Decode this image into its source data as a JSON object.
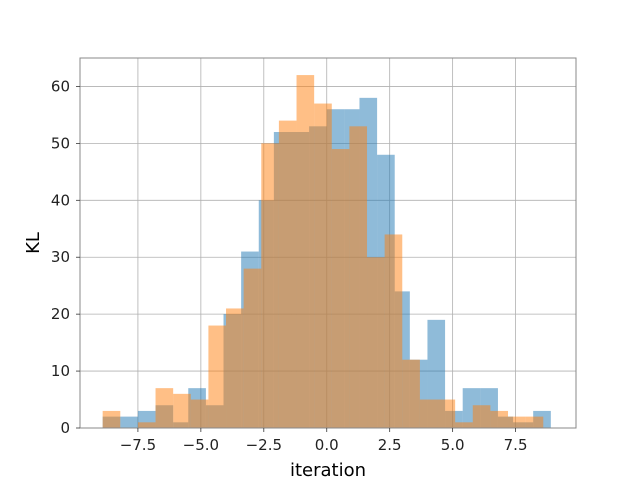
{
  "chart_data": {
    "type": "bar",
    "title": "",
    "xlabel": "iteration",
    "ylabel": "KL",
    "xlim": [
      -9.8,
      9.9
    ],
    "ylim": [
      0,
      65
    ],
    "grid": true,
    "legend": "none",
    "x_ticks": [
      -7.5,
      -5.0,
      -2.5,
      0.0,
      2.5,
      5.0,
      7.5
    ],
    "x_tick_labels": [
      "−7.5",
      "−5.0",
      "−2.5",
      "0.0",
      "2.5",
      "5.0",
      "7.5"
    ],
    "y_ticks": [
      0,
      10,
      20,
      30,
      40,
      50,
      60
    ],
    "y_tick_labels": [
      "0",
      "10",
      "20",
      "30",
      "40",
      "50",
      "60"
    ],
    "series": [
      {
        "color": "#1f77b4",
        "alpha": 0.5,
        "bins": [
          {
            "x0": -8.9,
            "x1": -8.2,
            "value": 2
          },
          {
            "x0": -8.2,
            "x1": -7.5,
            "value": 2
          },
          {
            "x0": -7.5,
            "x1": -6.8,
            "value": 3
          },
          {
            "x0": -6.8,
            "x1": -6.1,
            "value": 4
          },
          {
            "x0": -6.1,
            "x1": -5.5,
            "value": 1
          },
          {
            "x0": -5.5,
            "x1": -4.8,
            "value": 7
          },
          {
            "x0": -4.8,
            "x1": -4.1,
            "value": 4
          },
          {
            "x0": -4.1,
            "x1": -3.4,
            "value": 20
          },
          {
            "x0": -3.4,
            "x1": -2.7,
            "value": 31
          },
          {
            "x0": -2.7,
            "x1": -2.1,
            "value": 40
          },
          {
            "x0": -2.1,
            "x1": -1.4,
            "value": 52
          },
          {
            "x0": -1.4,
            "x1": -0.7,
            "value": 52
          },
          {
            "x0": -0.7,
            "x1": 0.0,
            "value": 53
          },
          {
            "x0": 0.0,
            "x1": 0.7,
            "value": 56
          },
          {
            "x0": 0.7,
            "x1": 1.3,
            "value": 56
          },
          {
            "x0": 1.3,
            "x1": 2.0,
            "value": 58
          },
          {
            "x0": 2.0,
            "x1": 2.7,
            "value": 48
          },
          {
            "x0": 2.7,
            "x1": 3.3,
            "value": 24
          },
          {
            "x0": 3.3,
            "x1": 4.0,
            "value": 12
          },
          {
            "x0": 4.0,
            "x1": 4.7,
            "value": 19
          },
          {
            "x0": 4.7,
            "x1": 5.4,
            "value": 3
          },
          {
            "x0": 5.4,
            "x1": 6.1,
            "value": 7
          },
          {
            "x0": 6.1,
            "x1": 6.8,
            "value": 7
          },
          {
            "x0": 6.8,
            "x1": 7.4,
            "value": 2
          },
          {
            "x0": 7.4,
            "x1": 8.2,
            "value": 1
          },
          {
            "x0": 8.2,
            "x1": 8.9,
            "value": 3
          }
        ]
      },
      {
        "color": "#ff7f0e",
        "alpha": 0.5,
        "bins": [
          {
            "x0": -8.9,
            "x1": -8.2,
            "value": 3
          },
          {
            "x0": -8.2,
            "x1": -7.5,
            "value": 0
          },
          {
            "x0": -7.5,
            "x1": -6.8,
            "value": 1
          },
          {
            "x0": -6.8,
            "x1": -6.1,
            "value": 7
          },
          {
            "x0": -6.1,
            "x1": -5.4,
            "value": 6
          },
          {
            "x0": -5.4,
            "x1": -4.7,
            "value": 5
          },
          {
            "x0": -4.7,
            "x1": -4.0,
            "value": 18
          },
          {
            "x0": -4.0,
            "x1": -3.3,
            "value": 21
          },
          {
            "x0": -3.3,
            "x1": -2.6,
            "value": 28
          },
          {
            "x0": -2.6,
            "x1": -1.9,
            "value": 50
          },
          {
            "x0": -1.9,
            "x1": -1.2,
            "value": 54
          },
          {
            "x0": -1.2,
            "x1": -0.5,
            "value": 62
          },
          {
            "x0": -0.5,
            "x1": 0.2,
            "value": 57
          },
          {
            "x0": 0.2,
            "x1": 0.9,
            "value": 49
          },
          {
            "x0": 0.9,
            "x1": 1.6,
            "value": 53
          },
          {
            "x0": 1.6,
            "x1": 2.3,
            "value": 30
          },
          {
            "x0": 2.3,
            "x1": 3.0,
            "value": 34
          },
          {
            "x0": 3.0,
            "x1": 3.7,
            "value": 12
          },
          {
            "x0": 3.7,
            "x1": 4.4,
            "value": 5
          },
          {
            "x0": 4.4,
            "x1": 5.1,
            "value": 5
          },
          {
            "x0": 5.1,
            "x1": 5.8,
            "value": 1
          },
          {
            "x0": 5.8,
            "x1": 6.5,
            "value": 4
          },
          {
            "x0": 6.5,
            "x1": 7.2,
            "value": 3
          },
          {
            "x0": 7.2,
            "x1": 7.9,
            "value": 2
          },
          {
            "x0": 7.9,
            "x1": 8.6,
            "value": 2
          },
          {
            "x0": 8.6,
            "x1": 9.0,
            "value": 0
          }
        ]
      }
    ]
  }
}
